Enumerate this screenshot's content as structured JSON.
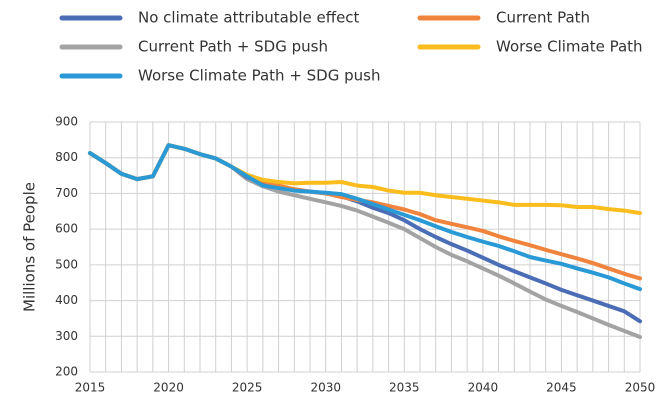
{
  "chart_data": {
    "type": "line",
    "y_label": "Millions of People",
    "x": [
      2015,
      2016,
      2017,
      2018,
      2019,
      2020,
      2021,
      2022,
      2023,
      2024,
      2025,
      2026,
      2027,
      2028,
      2029,
      2030,
      2031,
      2032,
      2033,
      2034,
      2035,
      2036,
      2037,
      2038,
      2039,
      2040,
      2041,
      2042,
      2043,
      2044,
      2045,
      2046,
      2047,
      2048,
      2049,
      2050
    ],
    "xlim": [
      2015,
      2050
    ],
    "xticks": [
      2015,
      2020,
      2025,
      2030,
      2035,
      2040,
      2045,
      2050
    ],
    "ylim": [
      200,
      900
    ],
    "yticks": [
      200,
      300,
      400,
      500,
      600,
      700,
      800,
      900
    ],
    "grid": true,
    "series": [
      {
        "name": "Current Path + SDG push",
        "color": "#a3a3a3",
        "values": [
          813,
          785,
          755,
          740,
          748,
          835,
          825,
          810,
          798,
          775,
          740,
          720,
          705,
          695,
          685,
          675,
          665,
          652,
          635,
          618,
          600,
          575,
          550,
          528,
          510,
          490,
          470,
          448,
          425,
          403,
          385,
          368,
          350,
          332,
          315,
          298
        ]
      },
      {
        "name": "No climate attributable effect",
        "color": "#4a6db5",
        "values": [
          813,
          785,
          755,
          740,
          748,
          835,
          825,
          810,
          798,
          775,
          745,
          730,
          718,
          710,
          705,
          700,
          692,
          678,
          660,
          645,
          625,
          600,
          578,
          558,
          540,
          520,
          500,
          482,
          465,
          448,
          430,
          415,
          400,
          385,
          370,
          342
        ]
      },
      {
        "name": "Current Path",
        "color": "#f0843c",
        "values": [
          813,
          785,
          755,
          740,
          748,
          835,
          825,
          810,
          798,
          775,
          748,
          735,
          722,
          712,
          705,
          700,
          690,
          682,
          675,
          665,
          655,
          642,
          625,
          615,
          605,
          595,
          580,
          567,
          555,
          542,
          530,
          518,
          505,
          490,
          475,
          462
        ]
      },
      {
        "name": "Worse Climate Path",
        "color": "#fbbd1e",
        "values": [
          813,
          785,
          755,
          740,
          748,
          835,
          825,
          810,
          798,
          775,
          752,
          738,
          732,
          728,
          730,
          730,
          732,
          722,
          718,
          708,
          702,
          702,
          695,
          690,
          685,
          680,
          675,
          668,
          668,
          668,
          667,
          662,
          662,
          656,
          652,
          645
        ]
      },
      {
        "name": "Worse Climate Path + SDG push",
        "color": "#2a9ad6",
        "values": [
          813,
          785,
          755,
          740,
          748,
          835,
          825,
          810,
          798,
          775,
          748,
          722,
          715,
          708,
          705,
          702,
          698,
          685,
          670,
          655,
          640,
          625,
          608,
          592,
          578,
          565,
          553,
          538,
          522,
          512,
          503,
          490,
          478,
          465,
          448,
          432
        ]
      }
    ]
  }
}
